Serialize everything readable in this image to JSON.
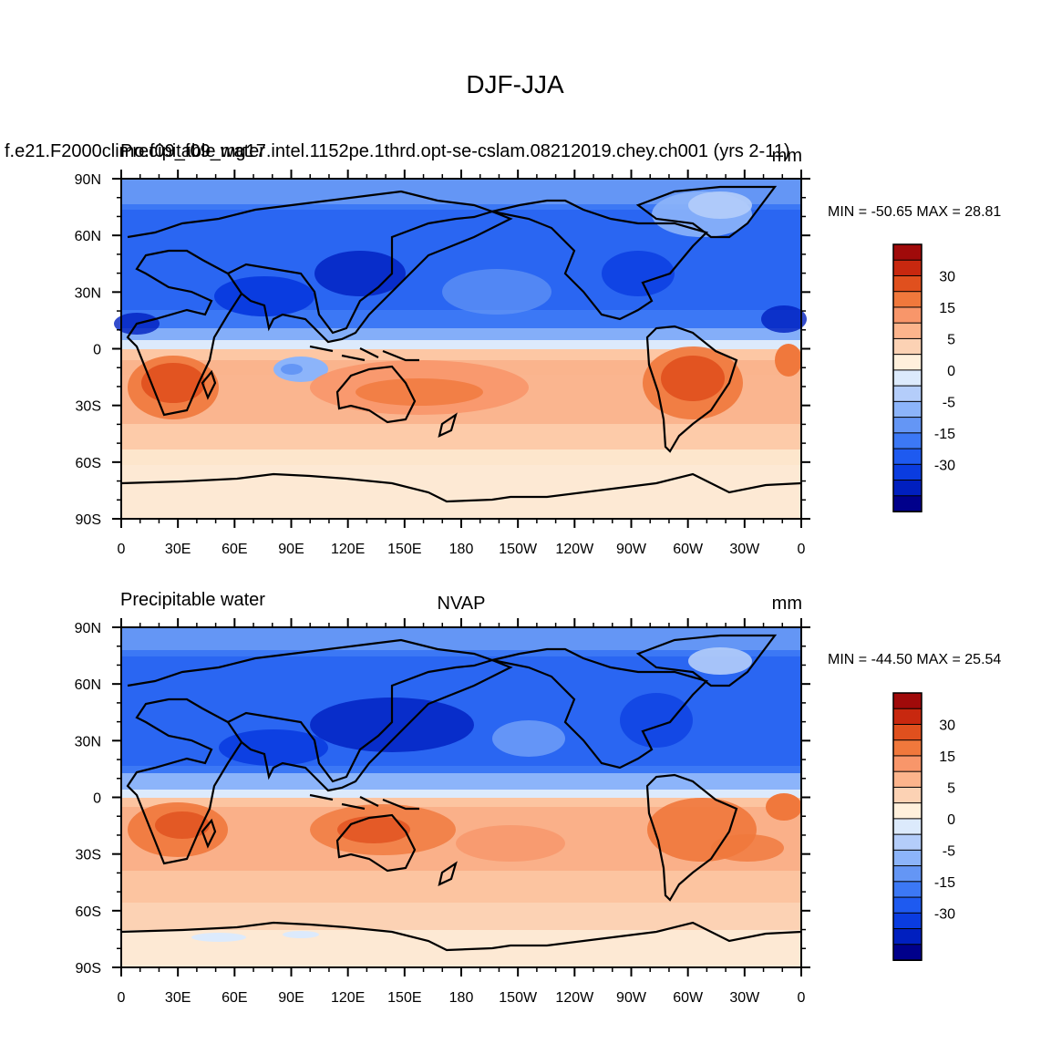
{
  "figure": {
    "title": "DJF-JJA"
  },
  "colors": {
    "levels": [
      "#00008b",
      "#001fbf",
      "#0a3ce0",
      "#1e5af0",
      "#3c78f5",
      "#6496f5",
      "#8cb4fa",
      "#b4cdfa",
      "#dceafc",
      "#fff0dc",
      "#fcd2b4",
      "#fcb48c",
      "#f8966a",
      "#f0783c",
      "#e0501e",
      "#c8280f",
      "#a00a0a"
    ]
  },
  "chart_data": [
    {
      "type": "contour-map",
      "title_center": "",
      "title_left": "f.e21.F2000climo.f09_f09_mg17.intel.1152pe.1thrd.opt-se-cslam.08212019.chey.ch001 (yrs 2-11)",
      "title_left_overlay": "Precipitable water",
      "units": "mm",
      "stats": "MIN = -50.65 MAX =  28.81",
      "min": -50.65,
      "max": 28.81,
      "x_ticks": [
        "0",
        "30E",
        "60E",
        "90E",
        "120E",
        "150E",
        "180",
        "150W",
        "120W",
        "90W",
        "60W",
        "30W",
        "0"
      ],
      "y_ticks": [
        "90N",
        "60N",
        "30N",
        "0",
        "30S",
        "60S",
        "90S"
      ],
      "colorbar_labels": [
        "30",
        "15",
        "5",
        "0",
        "-5",
        "-15",
        "-30"
      ],
      "levels": [
        -50,
        -40,
        -30,
        -20,
        -15,
        -10,
        -5,
        -2,
        0,
        2,
        5,
        10,
        15,
        20,
        30,
        40
      ]
    },
    {
      "type": "contour-map",
      "title_center": "NVAP",
      "title_left": "Precipitable water",
      "title_left_overlay": "",
      "units": "mm",
      "stats": "MIN = -44.50 MAX =  25.54",
      "min": -44.5,
      "max": 25.54,
      "x_ticks": [
        "0",
        "30E",
        "60E",
        "90E",
        "120E",
        "150E",
        "180",
        "150W",
        "120W",
        "90W",
        "60W",
        "30W",
        "0"
      ],
      "y_ticks": [
        "90N",
        "60N",
        "30N",
        "0",
        "30S",
        "60S",
        "90S"
      ],
      "colorbar_labels": [
        "30",
        "15",
        "5",
        "0",
        "-5",
        "-15",
        "-30"
      ],
      "levels": [
        -50,
        -40,
        -30,
        -20,
        -15,
        -10,
        -5,
        -2,
        0,
        2,
        5,
        10,
        15,
        20,
        30,
        40
      ]
    }
  ]
}
